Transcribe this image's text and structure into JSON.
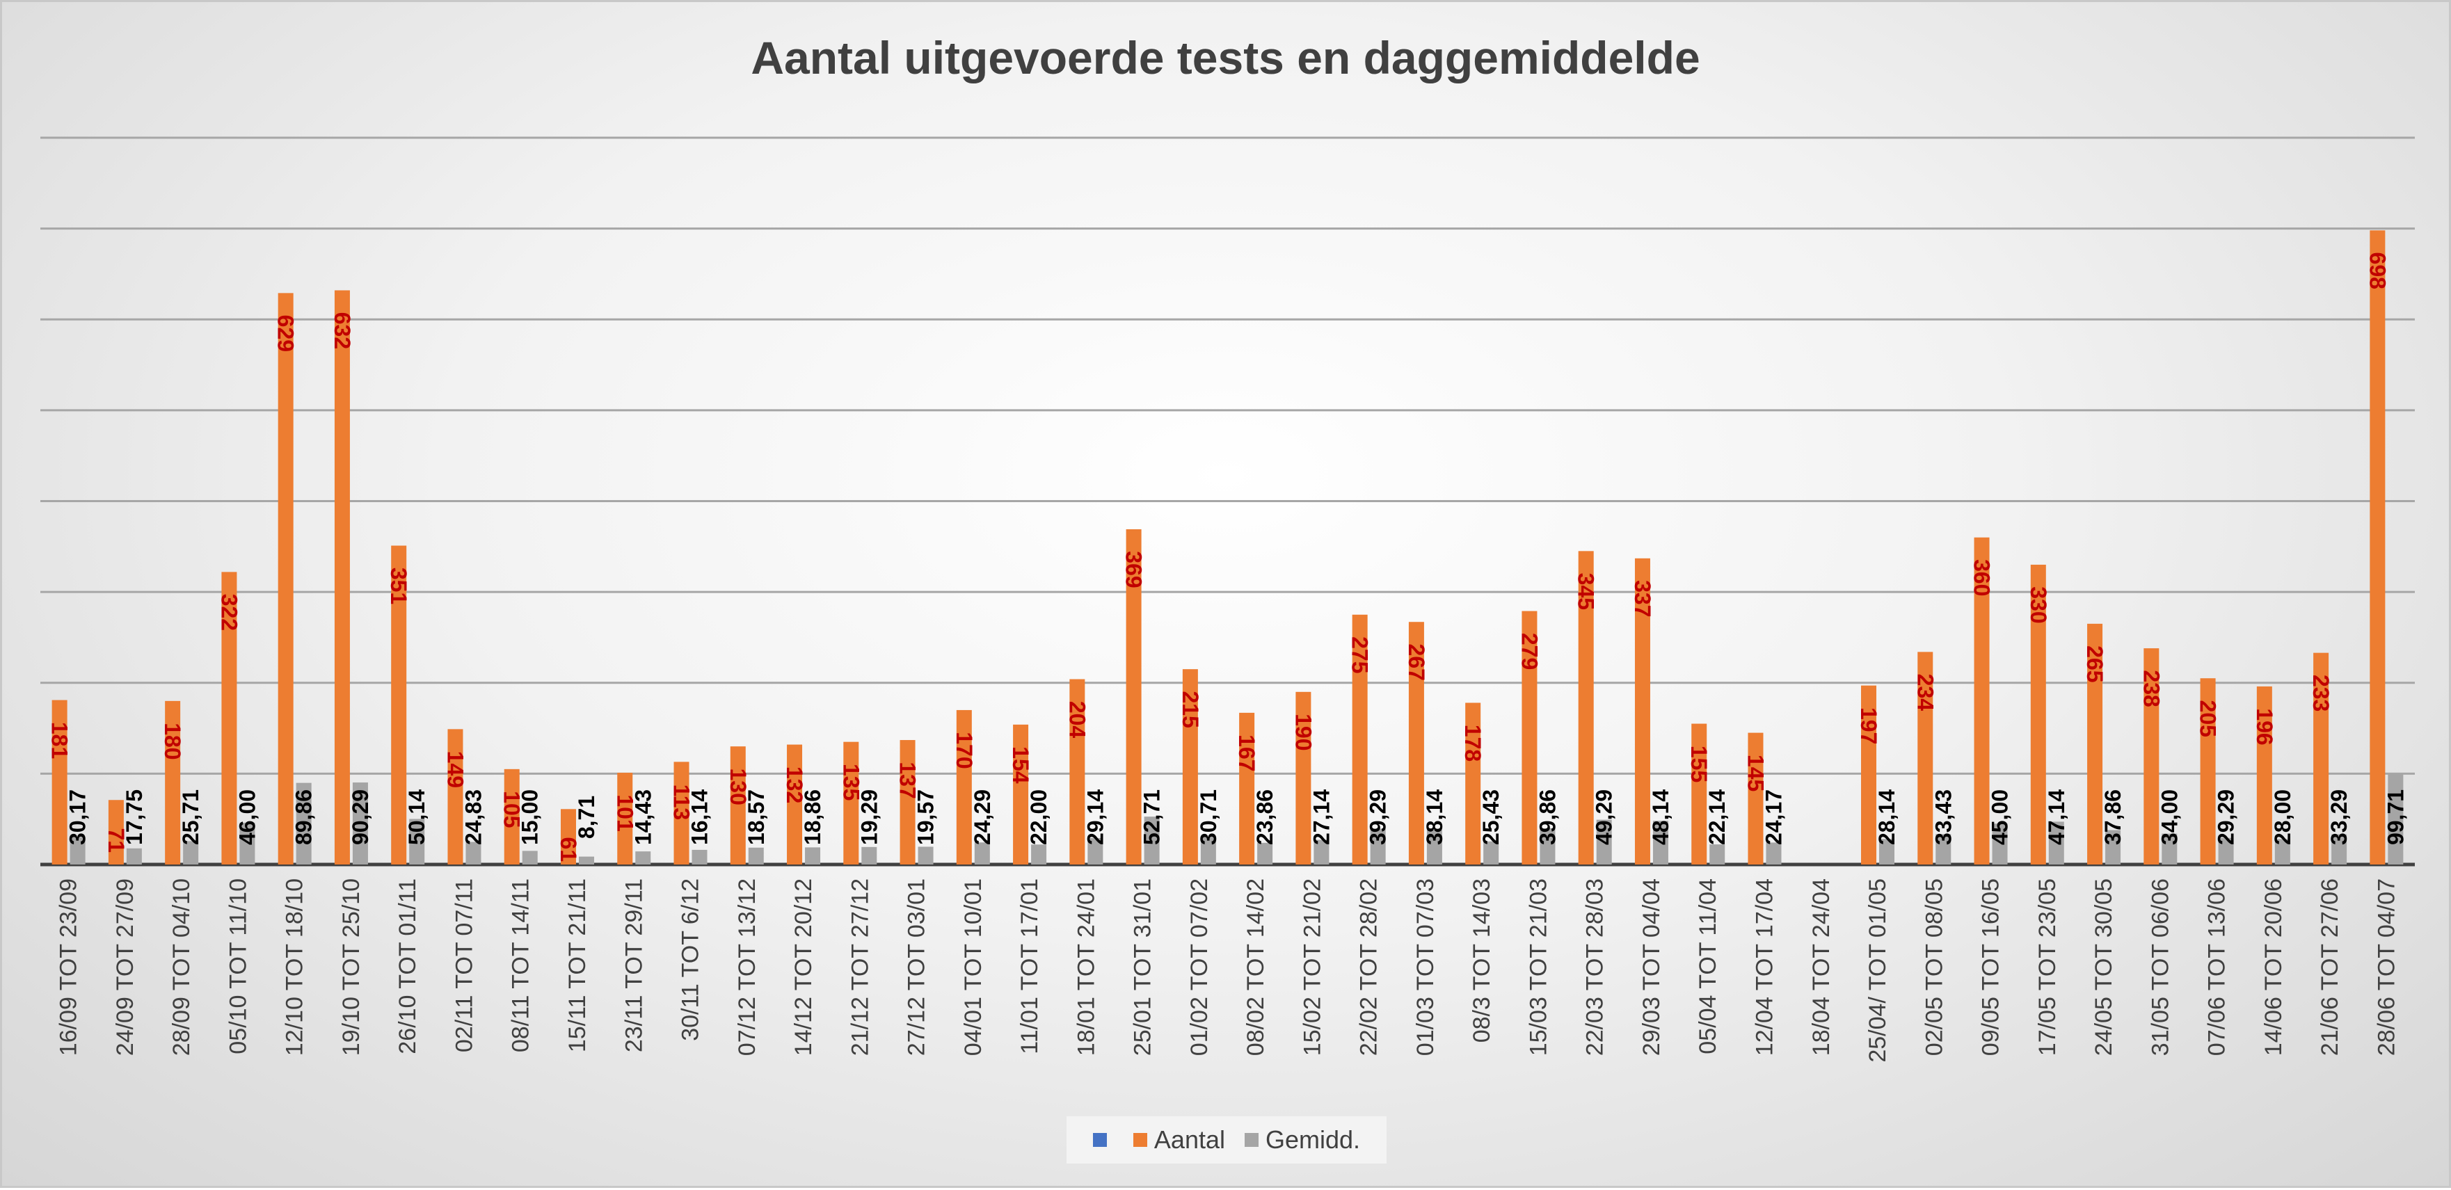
{
  "chart_data": {
    "type": "bar",
    "title": "Aantal uitgevoerde tests en daggemiddelde",
    "xlabel": "",
    "ylabel": "",
    "ylim": [
      0,
      800
    ],
    "grid": true,
    "legend_position": "bottom",
    "categories": [
      "16/09 TOT 23/09",
      "24/09 TOT 27/09",
      "28/09 TOT 04/10",
      "05/10 TOT 11/10",
      "12/10 TOT 18/10",
      "19/10 TOT 25/10",
      "26/10 TOT 01/11",
      "02/11 TOT 07/11",
      "08/11 TOT 14/11",
      "15/11 TOT 21/11",
      "23/11 TOT 29/11",
      "30/11 TOT 6/12",
      "07/12 TOT 13/12",
      "14/12 TOT 20/12",
      "21/12 TOT 27/12",
      "27/12 TOT 03/01",
      "04/01 TOT 10/01",
      "11/01 TOT 17/01",
      "18/01 TOT 24/01",
      "25/01 TOT 31/01",
      "01/02 TOT 07/02",
      "08/02 TOT 14/02",
      "15/02 TOT 21/02",
      "22/02 TOT 28/02",
      "01/03 TOT 07/03",
      "08/3 TOT 14/03",
      "15/03 TOT 21/03",
      "22/03 TOT 28/03",
      "29/03 TOT 04/04",
      "05/04 TOT 11/04",
      "12/04 TOT 17/04",
      "18/04 TOT 24/04",
      "25/04/ TOT 01/05",
      "02/05 TOT 08/05",
      "09/05 TOT 16/05",
      "17/05 TOT 23/05",
      "24/05 TOT 30/05",
      "31/05 TOT 06/06",
      "07/06 TOT 13/06",
      "14/06 TOT 20/06",
      "21/06 TOT 27/06",
      "28/06 TOT 04/07"
    ],
    "series": [
      {
        "name": "",
        "color": "#4472c4",
        "values": [
          null,
          null,
          null,
          null,
          null,
          null,
          null,
          null,
          null,
          null,
          null,
          null,
          null,
          null,
          null,
          null,
          null,
          null,
          null,
          null,
          null,
          null,
          null,
          null,
          null,
          null,
          null,
          null,
          null,
          null,
          null,
          null,
          null,
          null,
          null,
          null,
          null,
          null,
          null,
          null,
          null,
          null
        ]
      },
      {
        "name": "Aantal",
        "color": "#ed7d31",
        "label_color": "#c00000",
        "values": [
          181,
          71,
          180,
          322,
          629,
          632,
          351,
          149,
          105,
          61,
          101,
          113,
          130,
          132,
          135,
          137,
          170,
          154,
          204,
          369,
          215,
          167,
          190,
          275,
          267,
          178,
          279,
          345,
          337,
          155,
          145,
          null,
          197,
          234,
          360,
          330,
          265,
          238,
          205,
          196,
          233,
          698
        ],
        "labels": [
          "181",
          "71",
          "180",
          "322",
          "629",
          "632",
          "351",
          "149",
          "105",
          "61",
          "101",
          "113",
          "130",
          "132",
          "135",
          "137",
          "170",
          "154",
          "204",
          "369",
          "215",
          "167",
          "190",
          "275",
          "267",
          "178",
          "279",
          "345",
          "337",
          "155",
          "145",
          "",
          "197",
          "234",
          "360",
          "330",
          "265",
          "238",
          "205",
          "196",
          "233",
          "698"
        ]
      },
      {
        "name": "Gemidd.",
        "color": "#a5a5a5",
        "label_color": "#000000",
        "values": [
          30.17,
          17.75,
          25.71,
          46.0,
          89.86,
          90.29,
          50.14,
          24.83,
          15.0,
          8.71,
          14.43,
          16.14,
          18.57,
          18.86,
          19.29,
          19.57,
          24.29,
          22.0,
          29.14,
          52.71,
          30.71,
          23.86,
          27.14,
          39.29,
          38.14,
          25.43,
          39.86,
          49.29,
          48.14,
          22.14,
          24.17,
          null,
          28.14,
          33.43,
          45.0,
          47.14,
          37.86,
          34.0,
          29.29,
          28.0,
          33.29,
          99.71
        ],
        "labels": [
          "30,17",
          "17,75",
          "25,71",
          "46,00",
          "89,86",
          "90,29",
          "50,14",
          "24,83",
          "15,00",
          "8,71",
          "14,43",
          "16,14",
          "18,57",
          "18,86",
          "19,29",
          "19,57",
          "24,29",
          "22,00",
          "29,14",
          "52,71",
          "30,71",
          "23,86",
          "27,14",
          "39,29",
          "38,14",
          "25,43",
          "39,86",
          "49,29",
          "48,14",
          "22,14",
          "24,17",
          "",
          "28,14",
          "33,43",
          "45,00",
          "47,14",
          "37,86",
          "34,00",
          "29,29",
          "28,00",
          "33,29",
          "99,71"
        ]
      }
    ]
  }
}
